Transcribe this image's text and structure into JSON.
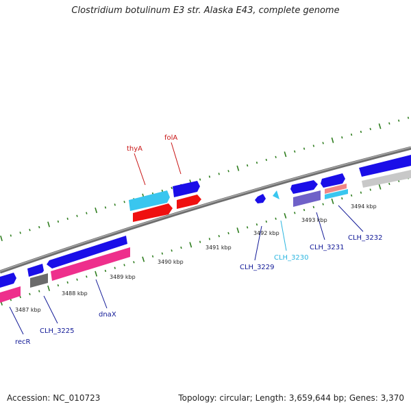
{
  "title": "Clostridium botulinum E3 str. Alaska E43, complete genome",
  "footer": {
    "accession": "Accession: NC_010723",
    "summary": "Topology: circular; Length: 3,659,644 bp; Genes: 3,370"
  },
  "colors": {
    "backbone": "#7f7f7f",
    "ticks": "#2e7d1e",
    "blue": "#1a0ee8",
    "cyan": "#39c6ef",
    "red": "#ef1010",
    "pink": "#ee2f8c",
    "grey": "#6b6b6b",
    "lightgrey": "#c8c8c8",
    "purple": "#6f61c8",
    "salmon": "#ef8686",
    "navy_label": "#0f1796",
    "red_label": "#c81414",
    "cyan_label": "#2ab5e0"
  },
  "ruler": {
    "labels": [
      "3487 kbp",
      "3488 kbp",
      "3489 kbp",
      "3490 kbp",
      "3491 kbp",
      "3492 kbp",
      "3493 kbp",
      "3494 kbp"
    ]
  },
  "genes": {
    "recR": "recR",
    "CLH_3225": "CLH_3225",
    "dnaX": "dnaX",
    "thyA": "thyA",
    "folA": "folA",
    "CLH_3229": "CLH_3229",
    "CLH_3230": "CLH_3230",
    "CLH_3231": "CLH_3231",
    "CLH_3232": "CLH_3232"
  }
}
